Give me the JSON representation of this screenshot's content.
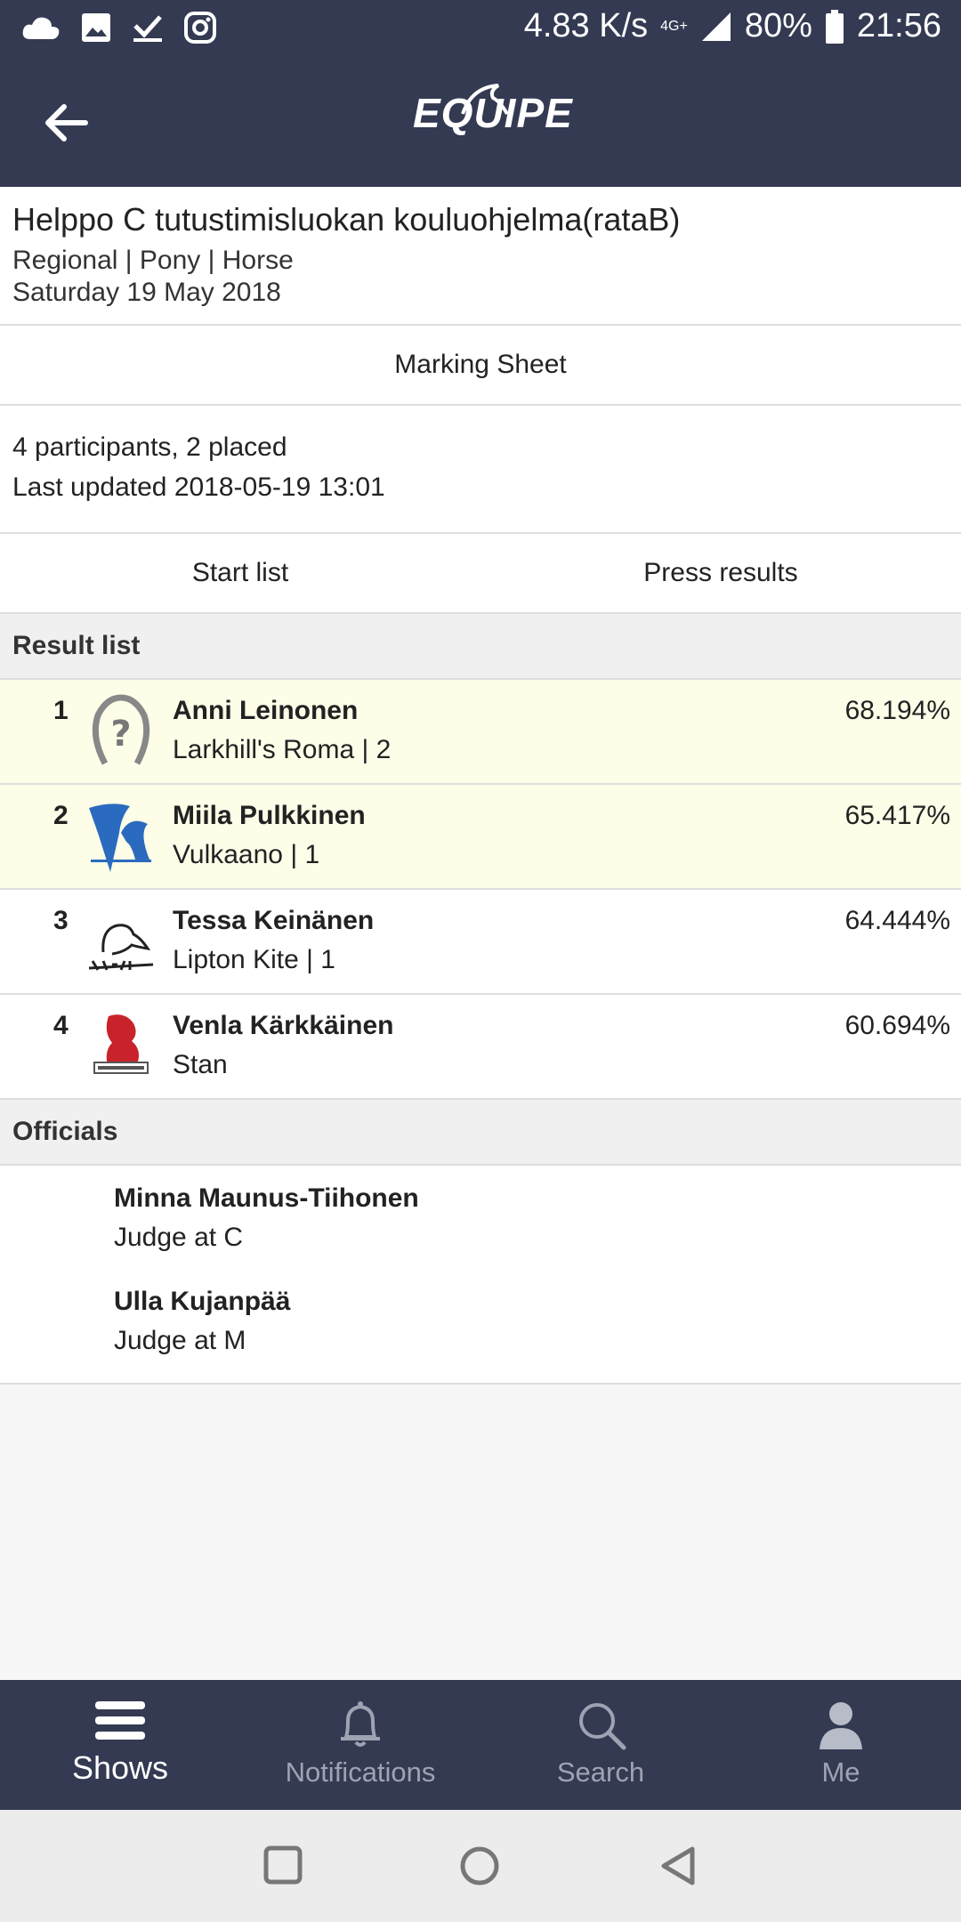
{
  "status": {
    "speed": "4.83 K/s",
    "network": "4G+",
    "battery": "80%",
    "time": "21:56",
    "icons": [
      "cloud-icon",
      "image-icon",
      "download-check-icon",
      "instagram-icon"
    ]
  },
  "appbar": {
    "logo": "EQUIPE"
  },
  "event": {
    "title": "Helppo C tutustimisluokan kouluohjelma(rataB)",
    "category": "Regional | Pony | Horse",
    "date": "Saturday 19 May 2018"
  },
  "marking_sheet": "Marking Sheet",
  "info": {
    "participants": "4 participants, 2 placed",
    "last_updated": "Last updated 2018-05-19 13:01"
  },
  "links": {
    "start_list": "Start list",
    "press_results": "Press results"
  },
  "result_list": {
    "header": "Result list",
    "rows": [
      {
        "rank": "1",
        "rider": "Anni Leinonen",
        "horse": "Larkhill's Roma | 2",
        "score": "68.194%",
        "club_icon": "unknown-club-horseshoe-icon",
        "placed": true
      },
      {
        "rank": "2",
        "rider": "Miila Pulkkinen",
        "horse": "Vulkaano | 1",
        "score": "65.417%",
        "club_icon": "vur-varkaus-club-logo",
        "placed": true
      },
      {
        "rank": "3",
        "rider": "Tessa Keinänen",
        "horse": "Lipton Kite | 1",
        "score": "64.444%",
        "club_icon": "ha-71-club-logo",
        "placed": false
      },
      {
        "rank": "4",
        "rider": "Venla Kärkkäinen",
        "horse": "Stan",
        "score": "60.694%",
        "club_icon": "red-horse-club-logo",
        "placed": false
      }
    ]
  },
  "officials": {
    "header": "Officials",
    "items": [
      {
        "name": "Minna Maunus-Tiihonen",
        "role": "Judge at C"
      },
      {
        "name": "Ulla Kujanpää",
        "role": "Judge at M"
      }
    ]
  },
  "tabs": [
    {
      "label": "Shows",
      "icon": "hamburger-icon",
      "active": true
    },
    {
      "label": "Notifications",
      "icon": "bell-icon",
      "active": false
    },
    {
      "label": "Search",
      "icon": "search-icon",
      "active": false
    },
    {
      "label": "Me",
      "icon": "person-icon",
      "active": false
    }
  ]
}
